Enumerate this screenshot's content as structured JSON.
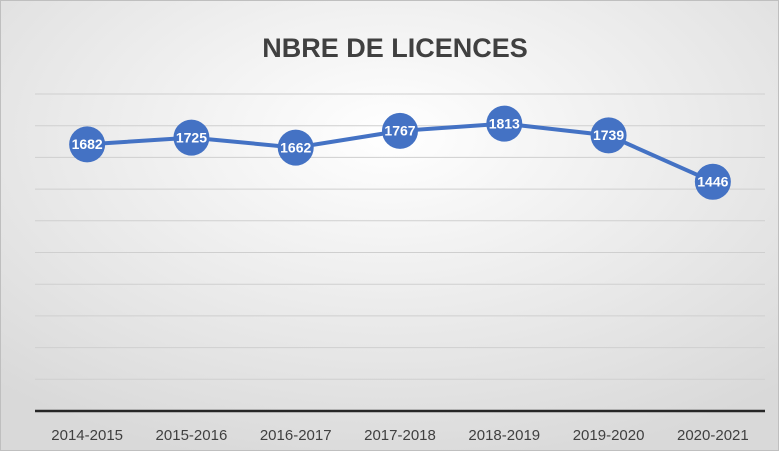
{
  "chart_data": {
    "type": "line",
    "title": "NBRE DE LICENCES",
    "categories": [
      "2014-2015",
      "2015-2016",
      "2016-2017",
      "2017-2018",
      "2018-2019",
      "2019-2020",
      "2020-2021"
    ],
    "series": [
      {
        "name": "NBRE DE LICENCES",
        "color": "#4472c4",
        "values": [
          1682,
          1725,
          1662,
          1767,
          1813,
          1739,
          1446
        ]
      }
    ],
    "ylim": [
      0,
      2000
    ],
    "yticks": [
      0,
      200,
      400,
      600,
      800,
      1000,
      1200,
      1400,
      1600,
      1800,
      2000
    ],
    "grid": true
  }
}
